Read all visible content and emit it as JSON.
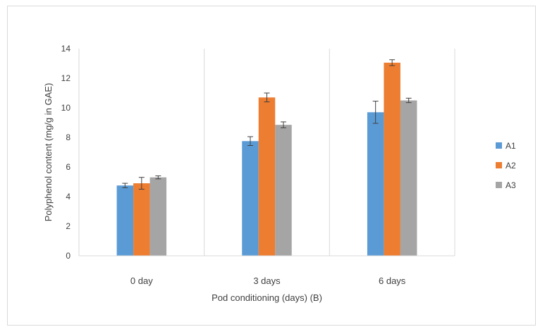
{
  "chart_data": {
    "type": "bar",
    "title": "",
    "xlabel": "Pod conditioning (days) (B)",
    "ylabel": "Polyphenol content (mg/g in GAE)",
    "categories": [
      "0 day",
      "3 days",
      "6 days"
    ],
    "ylim": [
      0,
      14
    ],
    "yticks": [
      0,
      2,
      4,
      6,
      8,
      10,
      12,
      14
    ],
    "grid": "vertical",
    "legend_position": "right",
    "series": [
      {
        "name": "A1",
        "color": "#5b9bd5",
        "values": [
          4.75,
          7.75,
          9.7
        ],
        "errors": [
          0.15,
          0.3,
          0.75
        ]
      },
      {
        "name": "A2",
        "color": "#ed7d31",
        "values": [
          4.9,
          10.7,
          13.05
        ],
        "errors": [
          0.4,
          0.3,
          0.2
        ]
      },
      {
        "name": "A3",
        "color": "#a5a5a5",
        "values": [
          5.3,
          8.85,
          10.5
        ],
        "errors": [
          0.1,
          0.2,
          0.15
        ]
      }
    ]
  }
}
